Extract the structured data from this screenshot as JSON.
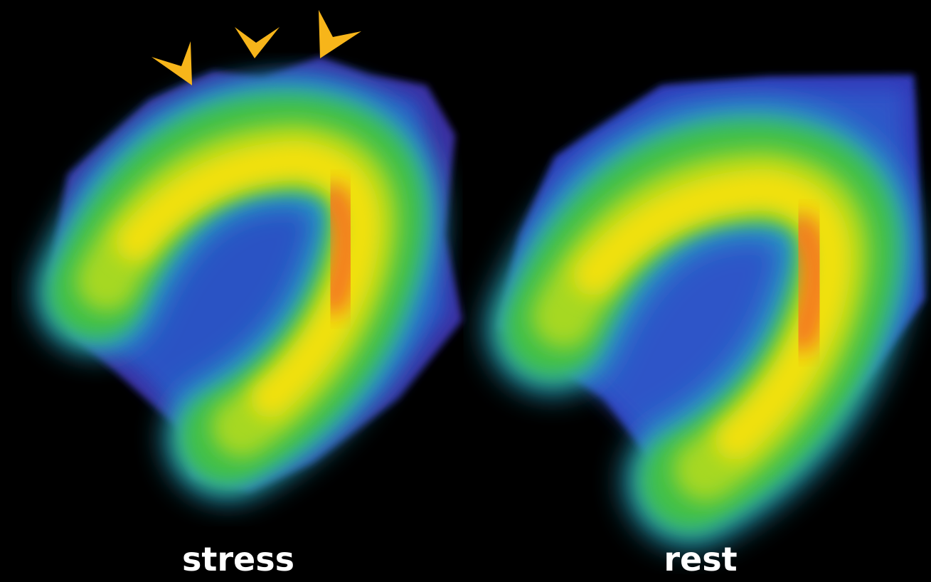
{
  "panels": [
    {
      "label": "stress"
    },
    {
      "label": "rest"
    }
  ]
}
